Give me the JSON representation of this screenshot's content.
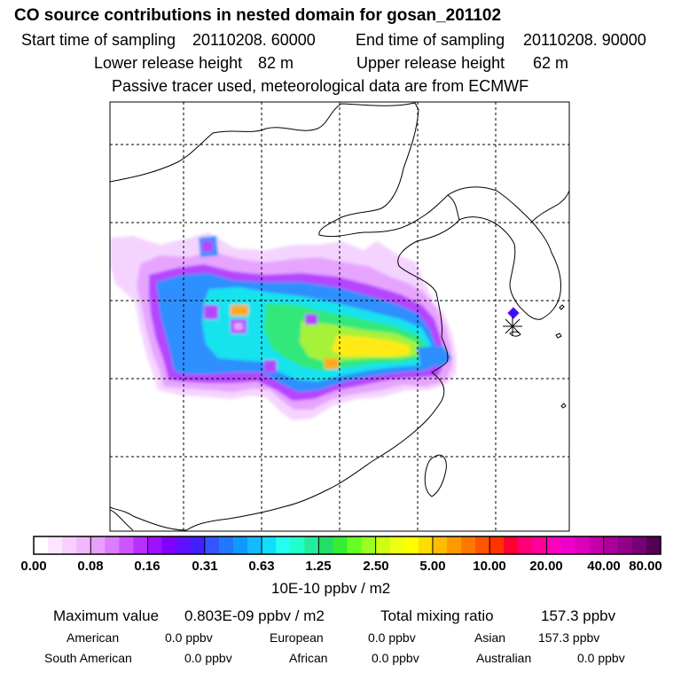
{
  "header": {
    "title": "CO  source contributions in nested domain for gosan_201102",
    "start_label": "Start time of sampling",
    "start_value": "20110208. 60000",
    "end_label": "End time of sampling",
    "end_value": "20110208. 90000",
    "lower_label": "Lower release height",
    "lower_value": "82 m",
    "upper_label": "Upper release height",
    "upper_value": "62 m",
    "info": "Passive tracer used, meteorological data are from ECMWF"
  },
  "colorbar": {
    "ticks": [
      "0.00",
      "0.08",
      "0.16",
      "0.31",
      "0.63",
      "1.25",
      "2.50",
      "5.00",
      "10.00",
      "20.00",
      "40.00",
      "80.00"
    ],
    "unit": "10E-10 ppbv / m2",
    "colors": [
      "#ffffff",
      "#fbe6ff",
      "#f6d0ff",
      "#f0b8ff",
      "#e6a0ff",
      "#dc7cff",
      "#cc55ff",
      "#b730ff",
      "#9e10ff",
      "#8000ff",
      "#6010ff",
      "#4020ff",
      "#3355ff",
      "#2277ff",
      "#1199ff",
      "#11bbff",
      "#11ddff",
      "#22ffee",
      "#22ffcc",
      "#22ee99",
      "#22dd66",
      "#33ee33",
      "#66ff22",
      "#99ff22",
      "#ccff11",
      "#eeff11",
      "#ffff00",
      "#ffdd00",
      "#ffbb00",
      "#ff9900",
      "#ff7700",
      "#ff5500",
      "#ff3300",
      "#ff0033",
      "#ff0077",
      "#ff0099",
      "#ff00bb",
      "#ee00cc",
      "#dd00bb",
      "#c400aa",
      "#aa0099",
      "#900088",
      "#770077",
      "#550055"
    ]
  },
  "summary": {
    "max_label": "Maximum value",
    "max_value": "0.803E-09 ppbv / m2",
    "total_label": "Total mixing ratio",
    "total_value": "157.3 ppbv",
    "regions": [
      {
        "name": "American",
        "value": "0.0 ppbv"
      },
      {
        "name": "European",
        "value": "0.0 ppbv"
      },
      {
        "name": "Asian",
        "value": "157.3 ppbv"
      },
      {
        "name": "South American",
        "value": "0.0 ppbv"
      },
      {
        "name": "African",
        "value": "0.0 ppbv"
      },
      {
        "name": "Australian",
        "value": "0.0 ppbv"
      }
    ]
  },
  "plume": {
    "levels": [
      "#f4d4ff",
      "#e6a4ff",
      "#b545ff",
      "#2f8fff",
      "#19e3ee",
      "#33e87a",
      "#a6f23a",
      "#ffea18",
      "#ffa81a"
    ]
  },
  "colors": {
    "receptor_marker": "#1a1aff",
    "frame": "#000000",
    "grid": "#000000"
  }
}
